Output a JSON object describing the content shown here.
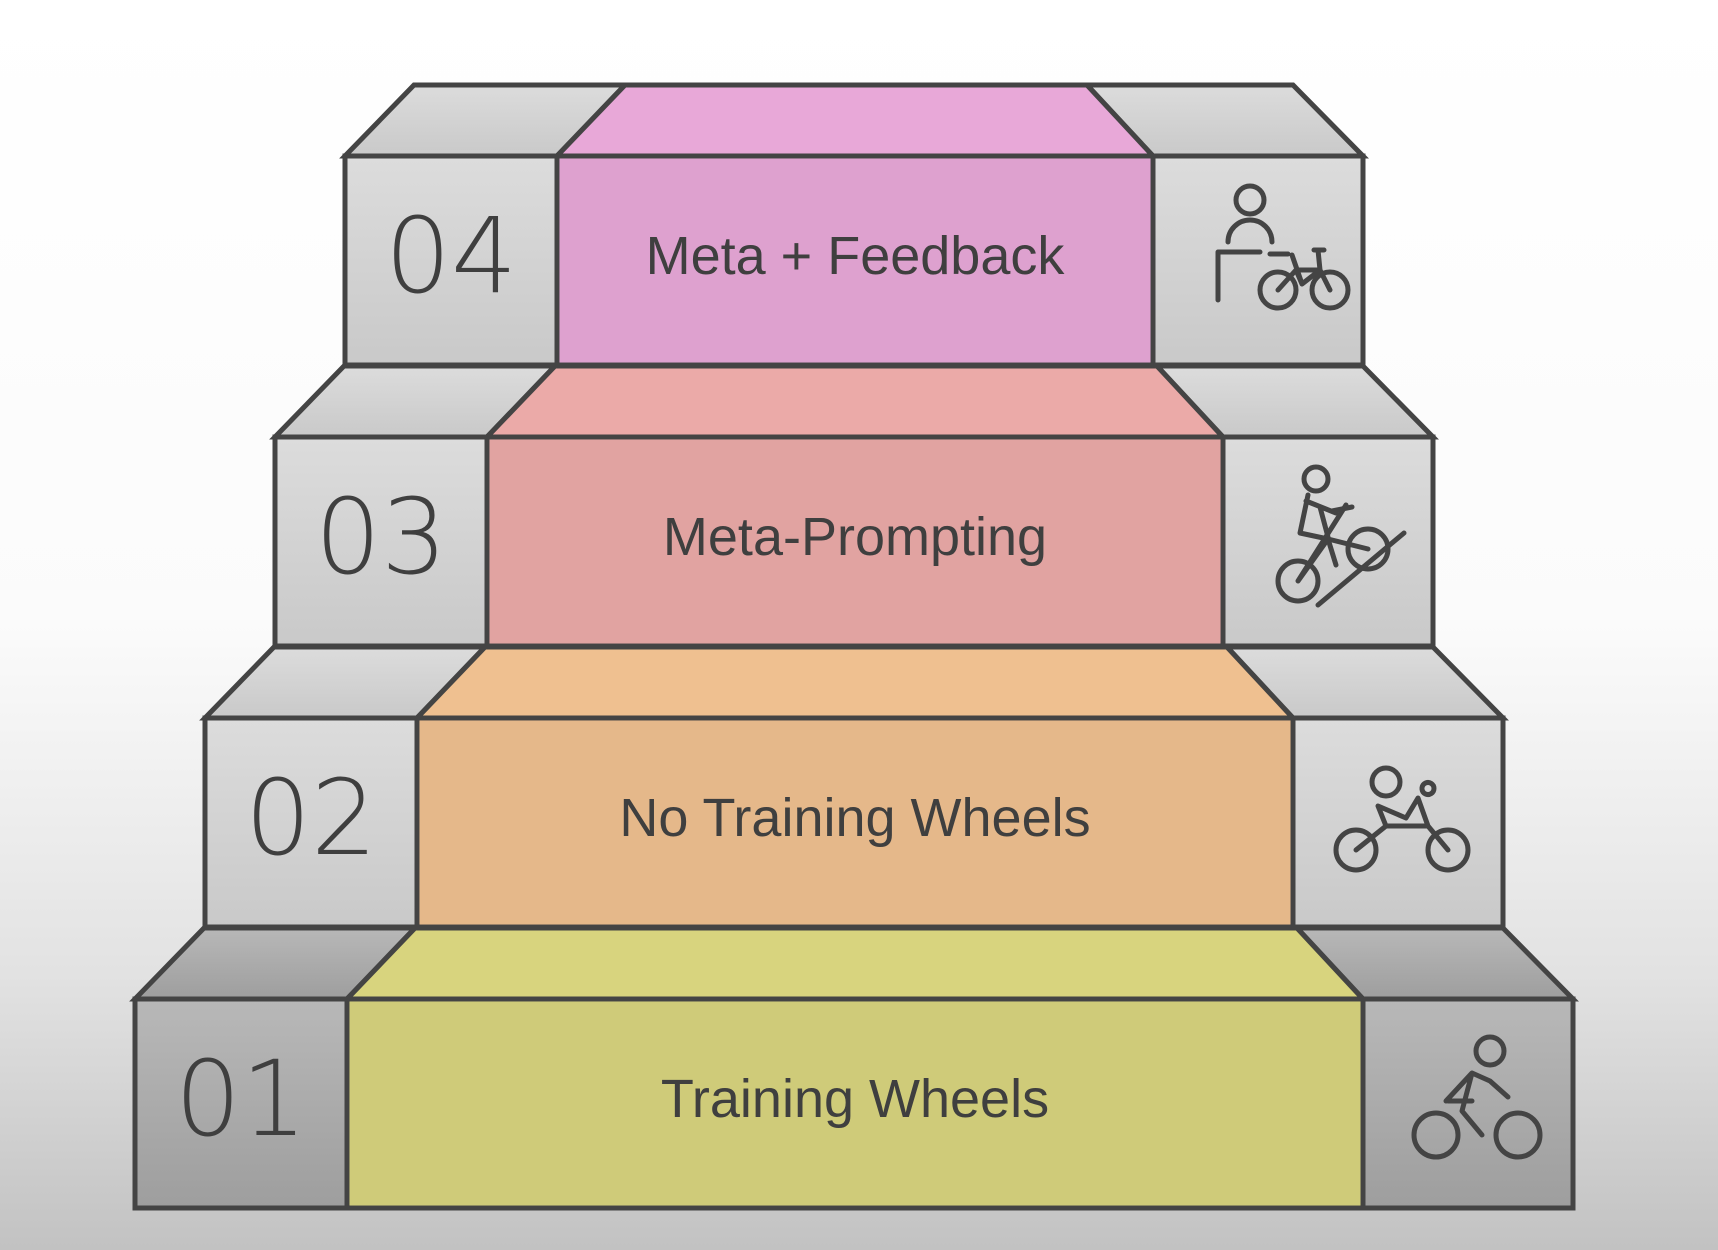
{
  "diagram": {
    "type": "staircase",
    "steps": [
      {
        "number": "01",
        "label": "Training Wheels",
        "color": "#d8d47e",
        "icon": "cyclist-icon"
      },
      {
        "number": "02",
        "label": "No Training Wheels",
        "color": "#efc090",
        "icon": "rider-pushing-bike-icon"
      },
      {
        "number": "03",
        "label": "Meta-Prompting",
        "color": "#ebaaa8",
        "icon": "cyclist-climbing-icon"
      },
      {
        "number": "04",
        "label": "Meta + Feedback",
        "color": "#e8a8d8",
        "icon": "coach-with-bike-icon"
      }
    ],
    "box_color": "#d6d6d6",
    "stroke_color": "#444444"
  }
}
